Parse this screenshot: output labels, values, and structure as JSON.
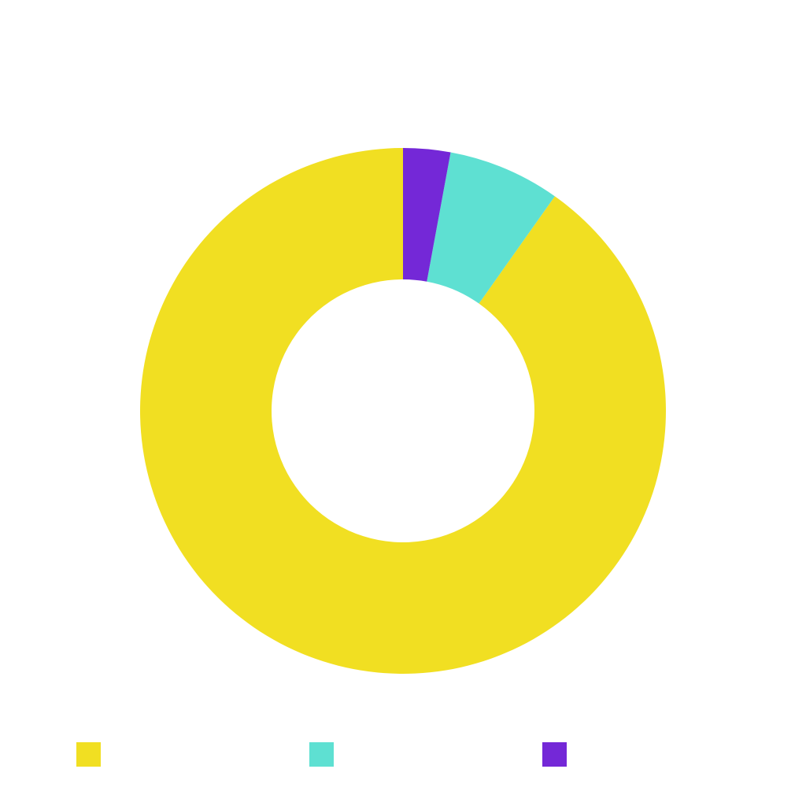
{
  "chart_data": {
    "type": "pie",
    "donut": true,
    "title": "",
    "categories": [
      "",
      "",
      ""
    ],
    "values": [
      90.2,
      6.9,
      2.9
    ],
    "colors": [
      "#F1DF22",
      "#5EE0D2",
      "#7428D7"
    ],
    "legend_position": "bottom",
    "start_angle": "top",
    "direction": "counter-clockwise",
    "grid": false
  }
}
